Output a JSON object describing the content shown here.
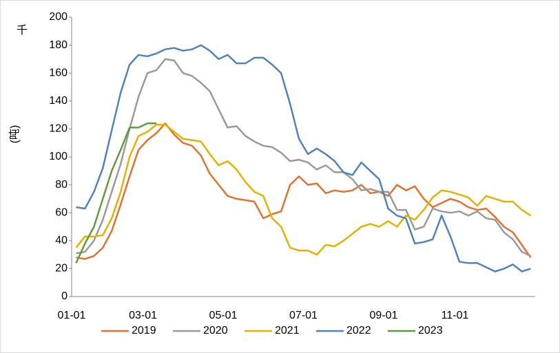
{
  "chart_data": {
    "type": "line",
    "y_unit": "千",
    "y_label": "(吨)",
    "categories": [
      "01-01",
      null,
      null,
      null,
      null,
      null,
      null,
      null,
      "03-01",
      null,
      null,
      null,
      null,
      null,
      null,
      null,
      null,
      "05-01",
      null,
      null,
      null,
      null,
      null,
      null,
      null,
      null,
      "07-01",
      null,
      null,
      null,
      null,
      null,
      null,
      null,
      null,
      "09-01",
      null,
      null,
      null,
      null,
      null,
      null,
      null,
      "11-01",
      null,
      null,
      null,
      null,
      null,
      null,
      null,
      null
    ],
    "ylim": [
      0,
      200
    ],
    "yticks": [
      0,
      20,
      40,
      60,
      80,
      100,
      120,
      140,
      160,
      180,
      200
    ],
    "legend": "bottom",
    "series": [
      {
        "name": "2019",
        "color": "#e2702f",
        "values": [
          28,
          27,
          29,
          35,
          47,
          66,
          86,
          105,
          112,
          117,
          124,
          116,
          110,
          108,
          101,
          88,
          80,
          72,
          70,
          69,
          68,
          56,
          59,
          61,
          80,
          86,
          80,
          81,
          74,
          76,
          75,
          76,
          80,
          74,
          75,
          72,
          80,
          76,
          79,
          70,
          64,
          67,
          70,
          68,
          64,
          62,
          63,
          57,
          50,
          46,
          37,
          28
        ]
      },
      {
        "name": "2020",
        "color": "#999999",
        "values": [
          31,
          32,
          40,
          55,
          75,
          95,
          120,
          143,
          160,
          162,
          170,
          169,
          160,
          158,
          153,
          147,
          134,
          121,
          122,
          115,
          111,
          108,
          107,
          103,
          97,
          98,
          96,
          91,
          94,
          89,
          89,
          84,
          76,
          77,
          75,
          75,
          62,
          62,
          48,
          50,
          63,
          61,
          60,
          61,
          58,
          61,
          56,
          55,
          46,
          41,
          32,
          29
        ]
      },
      {
        "name": "2021",
        "color": "#e5b000",
        "values": [
          35,
          43,
          43,
          44,
          56,
          75,
          100,
          115,
          118,
          123,
          123,
          118,
          113,
          112,
          111,
          102,
          94,
          97,
          91,
          82,
          75,
          72,
          56,
          50,
          35,
          33,
          33,
          30,
          37,
          36,
          40,
          45,
          50,
          52,
          50,
          54,
          50,
          58,
          55,
          62,
          71,
          76,
          75,
          73,
          71,
          65,
          72,
          70,
          68,
          68,
          62,
          58
        ]
      },
      {
        "name": "2022",
        "color": "#4d82bd",
        "values": [
          64,
          63,
          75,
          92,
          119,
          146,
          166,
          173,
          172,
          174,
          177,
          178,
          176,
          177,
          180,
          176,
          170,
          173,
          167,
          167,
          171,
          171,
          166,
          160,
          138,
          113,
          102,
          106,
          102,
          97,
          89,
          87,
          96,
          90,
          84,
          63,
          58,
          56,
          38,
          39,
          41,
          58,
          43,
          25,
          24,
          24,
          21,
          18,
          20,
          23,
          18,
          20
        ]
      },
      {
        "name": "2023",
        "color": "#5f9b3c",
        "values": [
          24,
          38,
          50,
          70,
          90,
          105,
          121,
          121,
          124,
          124,
          null,
          null,
          null,
          null,
          null,
          null,
          null,
          null,
          null,
          null,
          null,
          null,
          null,
          null,
          null,
          null,
          null,
          null,
          null,
          null,
          null,
          null,
          null,
          null,
          null,
          null,
          null,
          null,
          null,
          null,
          null,
          null,
          null,
          null,
          null,
          null,
          null,
          null,
          null,
          null,
          null,
          null
        ]
      }
    ]
  }
}
